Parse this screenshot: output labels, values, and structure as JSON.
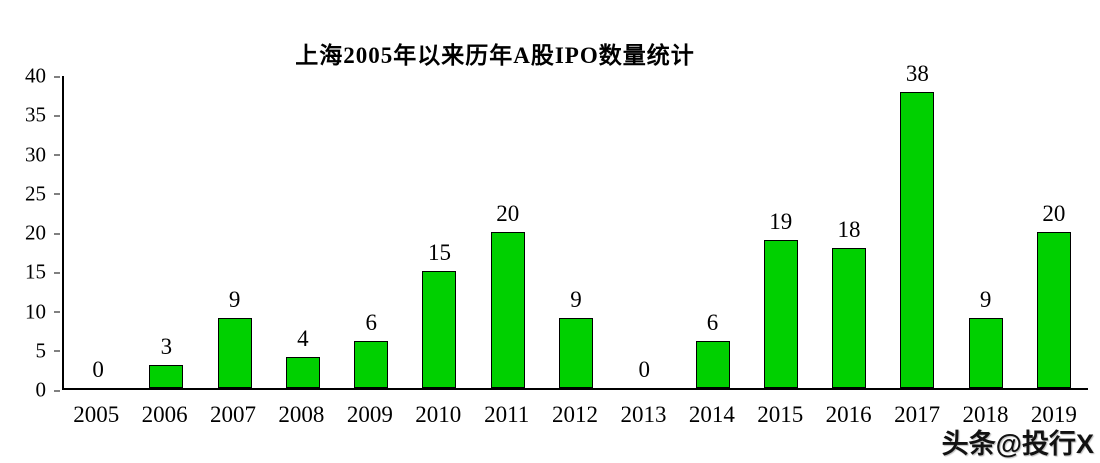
{
  "chart_data": {
    "type": "bar",
    "title": "上海2005年以来历年A股IPO数量统计",
    "categories": [
      "2005",
      "2006",
      "2007",
      "2008",
      "2009",
      "2010",
      "2011",
      "2012",
      "2013",
      "2014",
      "2015",
      "2016",
      "2017",
      "2018",
      "2019"
    ],
    "values": [
      0,
      3,
      9,
      4,
      6,
      15,
      20,
      9,
      0,
      6,
      19,
      18,
      38,
      9,
      20
    ],
    "xlabel": "",
    "ylabel": "",
    "ylim": [
      0,
      40
    ],
    "ytick_step": 5,
    "grid": false,
    "legend": false,
    "bar_color": "#00d000",
    "bar_border_color": "#000000",
    "data_labels": true
  },
  "watermark": {
    "text": "头条@投行X"
  }
}
